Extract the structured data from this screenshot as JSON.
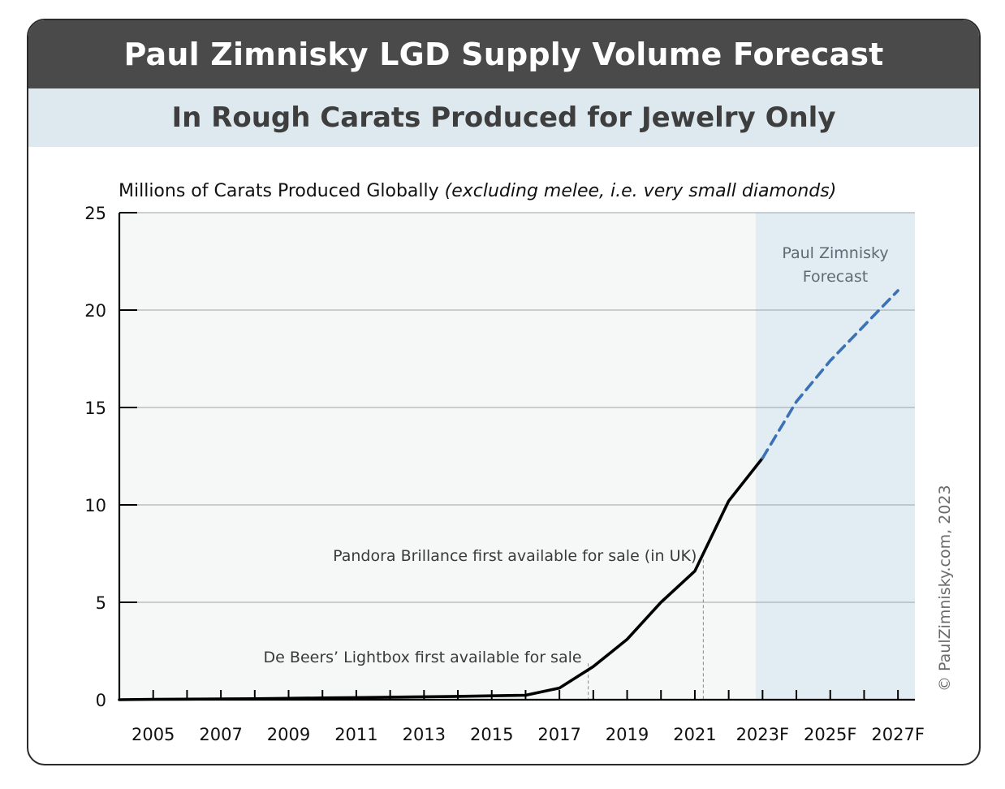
{
  "header": {
    "title": "Paul Zimnisky LGD Supply Volume Forecast",
    "subtitle": "In Rough Carats Produced for Jewelry Only"
  },
  "copyright": "© PaulZimnisky.com, 2023",
  "colors": {
    "title_bg": "#4a4a4a",
    "subtitle_bg": "#dde8ef",
    "plot_bg": "#f6f8f8",
    "forecast_bg": "#e2ecf3",
    "actual_line": "#000000",
    "forecast_line": "#3a72b5",
    "forecast_tick_label": "#3a72b5"
  },
  "chart_data": {
    "type": "line",
    "ylabel_main": "Millions of Carats Produced Globally ",
    "ylabel_italic": "(excluding melee, i.e. very small diamonds)",
    "ylim": [
      0,
      25
    ],
    "yticks": [
      0,
      5,
      10,
      15,
      20,
      25
    ],
    "xlim": [
      2004,
      2027.5
    ],
    "x_tick_labels": [
      {
        "x": 2005,
        "label": "2005",
        "forecast": false
      },
      {
        "x": 2007,
        "label": "2007",
        "forecast": false
      },
      {
        "x": 2009,
        "label": "2009",
        "forecast": false
      },
      {
        "x": 2011,
        "label": "2011",
        "forecast": false
      },
      {
        "x": 2013,
        "label": "2013",
        "forecast": false
      },
      {
        "x": 2015,
        "label": "2015",
        "forecast": false
      },
      {
        "x": 2017,
        "label": "2017",
        "forecast": false
      },
      {
        "x": 2019,
        "label": "2019",
        "forecast": false
      },
      {
        "x": 2021,
        "label": "2021",
        "forecast": false
      },
      {
        "x": 2023,
        "label": "2023F",
        "forecast": true
      },
      {
        "x": 2025,
        "label": "2025F",
        "forecast": true
      },
      {
        "x": 2027,
        "label": "2027F",
        "forecast": true
      }
    ],
    "grid": "horizontal",
    "series": [
      {
        "style": "solid",
        "x": [
          2004,
          2005,
          2006,
          2007,
          2008,
          2009,
          2010,
          2011,
          2012,
          2013,
          2014,
          2015,
          2016,
          2017,
          2018,
          2019,
          2020,
          2021,
          2022,
          2023
        ],
        "y": [
          0.0,
          0.02,
          0.03,
          0.04,
          0.05,
          0.07,
          0.09,
          0.11,
          0.13,
          0.15,
          0.17,
          0.2,
          0.23,
          0.6,
          1.7,
          3.1,
          5.0,
          6.6,
          10.2,
          12.4
        ]
      },
      {
        "style": "dashed",
        "x": [
          2023,
          2024,
          2025,
          2026,
          2027
        ],
        "y": [
          12.4,
          15.3,
          17.4,
          19.2,
          21.0
        ]
      }
    ],
    "forecast_region": {
      "from": 2022.8,
      "to": 2027.5,
      "label_line1": "Paul Zimnisky",
      "label_line2": "Forecast"
    },
    "annotations": [
      {
        "x": 2017.85,
        "y": 1.7,
        "text": "De Beers’ Lightbox first available for sale"
      },
      {
        "x": 2021.25,
        "y": 7.2,
        "text": "Pandora Brillance first available for sale (in UK)"
      }
    ]
  }
}
